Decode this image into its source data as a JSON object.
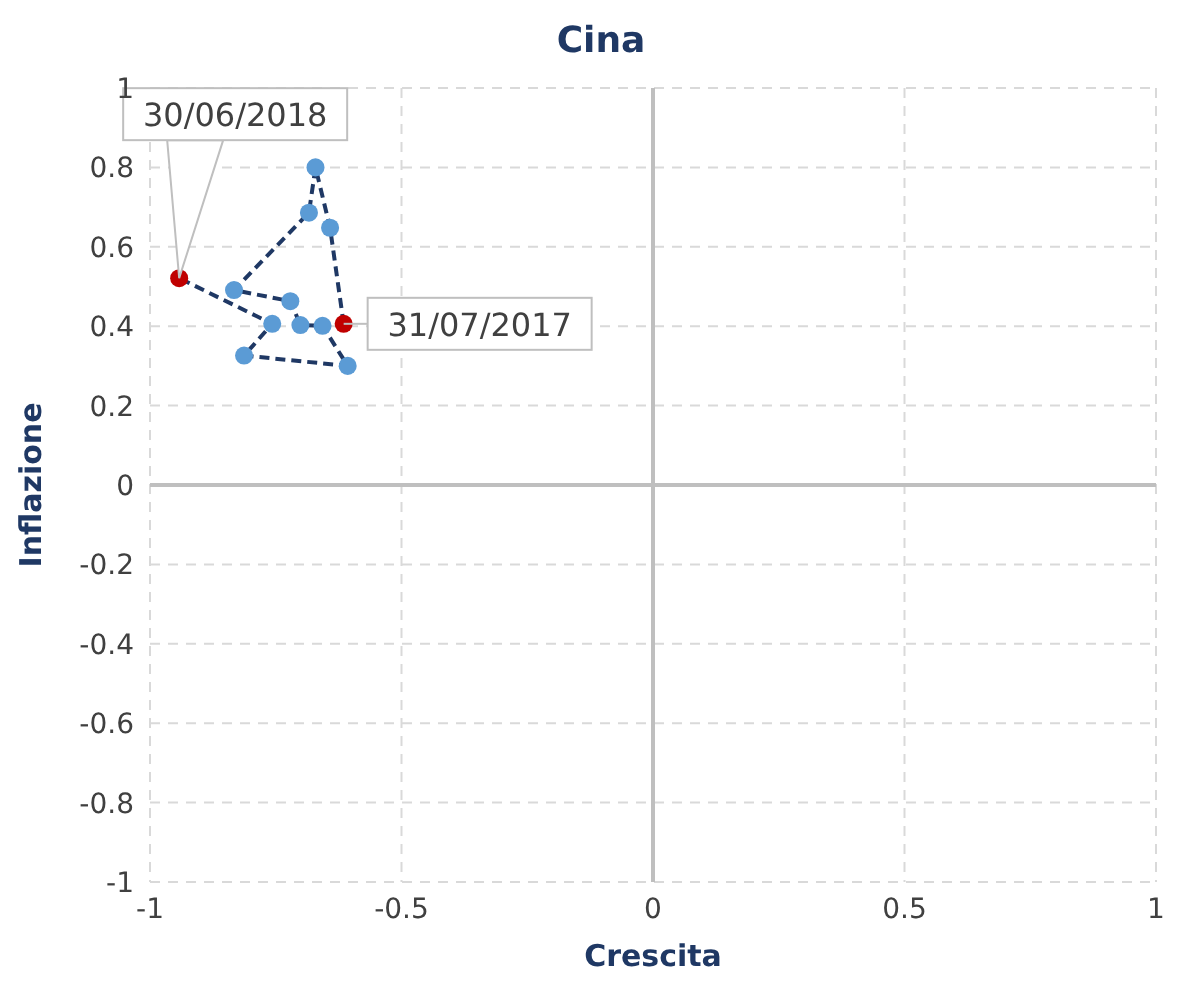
{
  "chart_data": {
    "type": "line",
    "title": "Cina",
    "xlabel": "Crescita",
    "ylabel": "Inflazione",
    "series": [
      {
        "x": [
          -0.615,
          -0.642,
          -0.671,
          -0.684,
          -0.833,
          -0.721,
          -0.701,
          -0.657,
          -0.607,
          -0.813,
          -0.757,
          -0.942
        ],
        "values": [
          0.406,
          0.648,
          0.8,
          0.686,
          0.491,
          0.463,
          0.403,
          0.401,
          0.3,
          0.326,
          0.406,
          0.521
        ],
        "color": "#1f3864",
        "colors": [
          "#c00000",
          "#5b9bd5",
          "#5b9bd5",
          "#5b9bd5",
          "#5b9bd5",
          "#5b9bd5",
          "#5b9bd5",
          "#5b9bd5",
          "#5b9bd5",
          "#5b9bd5",
          "#5b9bd5",
          "#c00000"
        ]
      }
    ],
    "marker": "circle",
    "line_style": "dashed",
    "xlim": [
      -1,
      1
    ],
    "xticks": [
      -1,
      -0.5,
      0,
      0.5,
      1
    ],
    "ylim": [
      -1,
      1
    ],
    "yticks": [
      -1,
      -0.8,
      -0.6,
      -0.4,
      -0.2,
      0,
      0.2,
      0.4,
      0.6,
      0.8,
      1
    ],
    "grid": true,
    "annotations": [
      {
        "text": "31/07/2017",
        "x": -0.615,
        "y": 0.406
      },
      {
        "text": "30/06/2018",
        "x": -0.942,
        "y": 0.521
      }
    ]
  }
}
